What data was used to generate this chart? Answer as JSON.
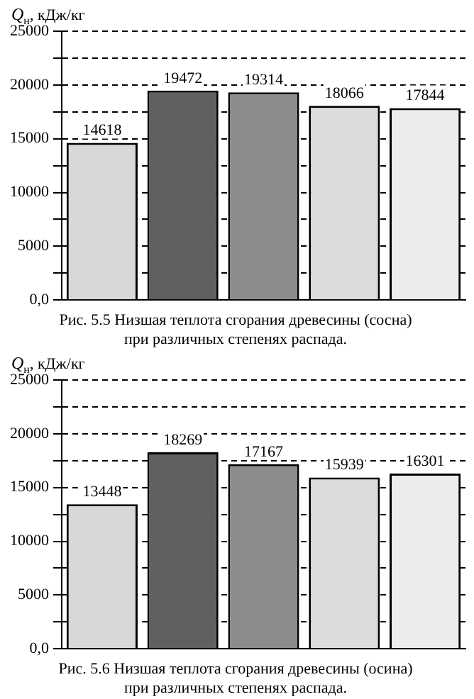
{
  "chart_data": [
    {
      "type": "bar",
      "title": "Рис. 5.5 Низшая теплота сгорания древесины (сосна)\nпри различных степенях распада.",
      "ylabel": "Q$_{н}$, кДж/кг",
      "categories": [
        null,
        null,
        null,
        null,
        null
      ],
      "values": [
        14618,
        19472,
        19314,
        18066,
        17844
      ],
      "colors": [
        "#d8d8d8",
        "#606060",
        "#8c8c8c",
        "#dcdcdc",
        "#ececec"
      ],
      "data_labels": true,
      "ylim": [
        0,
        25000
      ],
      "yticks": [
        {
          "value": 0,
          "label": "0,0"
        },
        {
          "value": 2500,
          "label": null
        },
        5000,
        {
          "value": 7500,
          "label": null
        },
        10000,
        {
          "value": 12500,
          "label": null
        },
        15000,
        {
          "value": 17500,
          "label": null
        },
        20000,
        {
          "value": 22500,
          "label": null
        },
        25000
      ],
      "grid": "y",
      "legend": false
    },
    {
      "type": "bar",
      "title": "Рис. 5.6 Низшая теплота сгорания древесины (осина)\nпри различных степенях распада.",
      "ylabel": "Q$_{н}$, кДж/кг",
      "categories": [
        null,
        null,
        null,
        null,
        null
      ],
      "values": [
        13448,
        18269,
        17167,
        15939,
        16301
      ],
      "colors": [
        "#d8d8d8",
        "#606060",
        "#8c8c8c",
        "#dcdcdc",
        "#ececec"
      ],
      "data_labels": true,
      "ylim": [
        0,
        25000
      ],
      "yticks": [
        {
          "value": 0,
          "label": "0,0"
        },
        {
          "value": 2500,
          "label": null
        },
        5000,
        {
          "value": 7500,
          "label": null
        },
        10000,
        {
          "value": 12500,
          "label": null
        },
        15000,
        {
          "value": 17500,
          "label": null
        },
        20000,
        {
          "value": 22500,
          "label": null
        },
        25000
      ],
      "grid": "y",
      "legend": false
    }
  ]
}
